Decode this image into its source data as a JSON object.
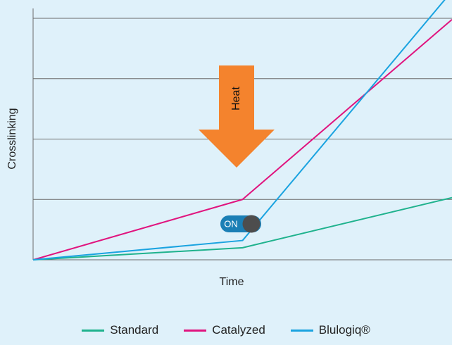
{
  "chart_data": {
    "type": "line",
    "xlabel": "Time",
    "ylabel": "Crosslinking",
    "xlim": [
      0,
      100
    ],
    "ylim": [
      0,
      4
    ],
    "grid": "horizontal",
    "legend_position": "bottom",
    "series": [
      {
        "name": "Standard",
        "color": "#1fb28d",
        "x": [
          0,
          50,
          100
        ],
        "y": [
          0,
          0.2,
          1.03
        ]
      },
      {
        "name": "Catalyzed",
        "color": "#e0147e",
        "x": [
          0,
          50,
          100
        ],
        "y": [
          0,
          1.0,
          3.98
        ]
      },
      {
        "name": "Blulogiq®",
        "color": "#1aa3e0",
        "x": [
          0,
          50,
          100
        ],
        "y": [
          0,
          0.32,
          4.45
        ]
      }
    ],
    "annotations": {
      "heat_label": "Heat",
      "heat_color": "#f4832d",
      "switch_label": "ON",
      "switch_color": "#1b7fb5"
    }
  }
}
